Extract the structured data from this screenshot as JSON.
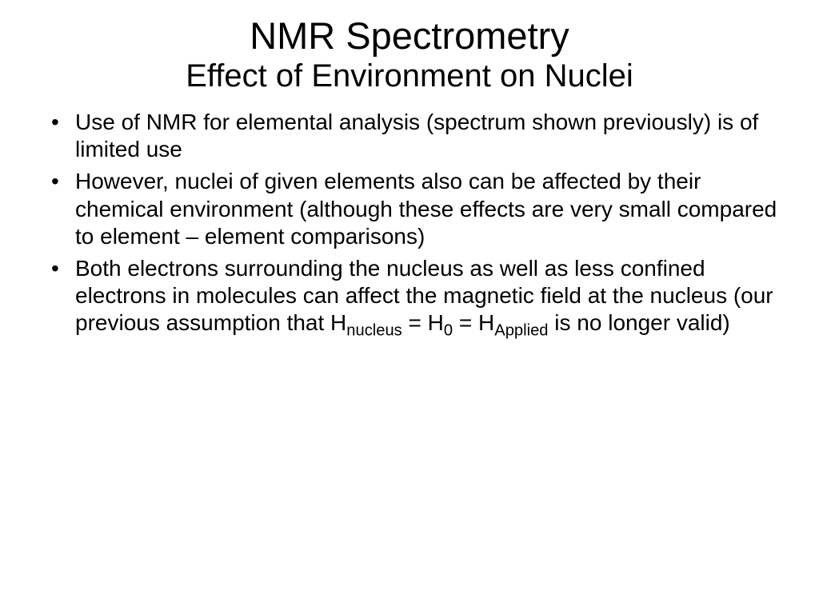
{
  "slide": {
    "title_main": "NMR Spectrometry",
    "title_sub": "Effect of Environment on Nuclei",
    "bullets": [
      {
        "text": "Use of NMR for elemental analysis (spectrum shown previously) is of limited use"
      },
      {
        "text": "However, nuclei of given elements also can be affected by their chemical environment (although these effects are very small compared to element – element comparisons)"
      },
      {
        "pre": "Both electrons surrounding the nucleus as well as less confined electrons in molecules can affect the magnetic field at the nucleus (our previous assumption that H",
        "sub1": "nucleus",
        "mid1": " = H",
        "sub2": "0",
        "mid2": " = H",
        "sub3": "Applied",
        "post": " is no longer valid)"
      }
    ]
  },
  "style": {
    "background_color": "#ffffff",
    "text_color": "#000000",
    "title_main_fontsize": 47,
    "title_sub_fontsize": 40,
    "body_fontsize": 28,
    "font_family": "Verdana, Geneva, sans-serif"
  }
}
